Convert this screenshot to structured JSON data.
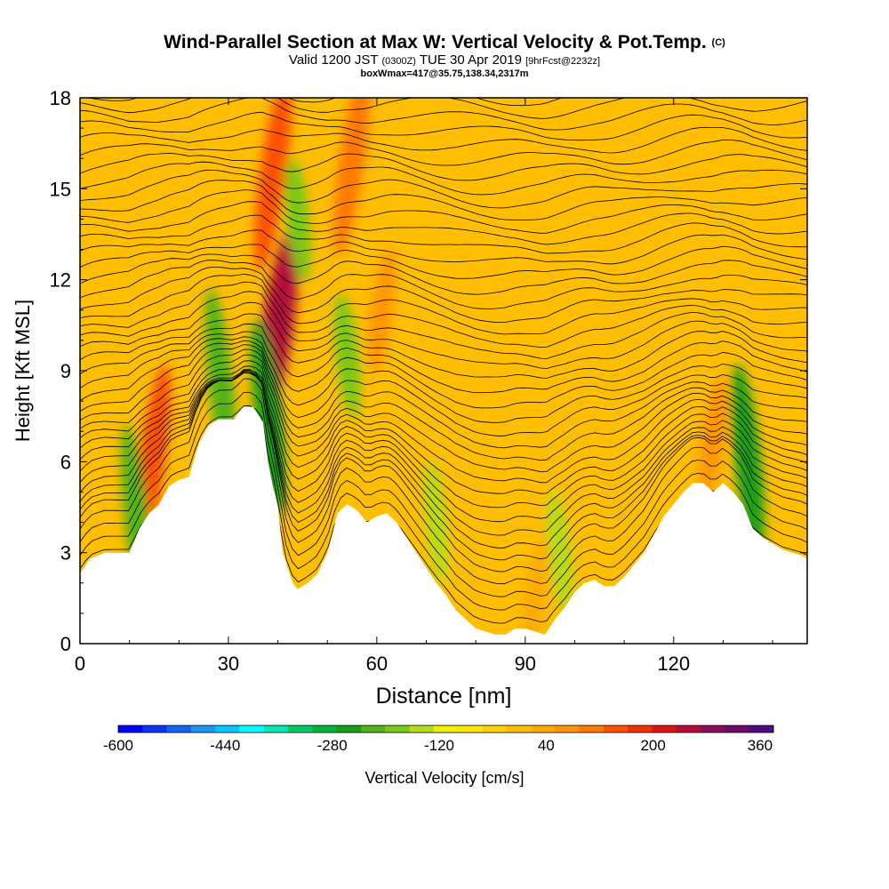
{
  "header": {
    "title": "Wind-Parallel Section at Max W: Vertical Velocity & Pot.Temp.",
    "title_mark": "(C)",
    "valid_prefix": "Valid 1200 JST",
    "valid_utc": "(0300Z)",
    "valid_date": "TUE 30 Apr 2019",
    "forecast": "[9hrFcst@2232z]",
    "box_info": "boxWmax=417@35.75,138.34,2317m"
  },
  "chart_data": {
    "type": "heatmap",
    "xlabel": "Distance [nm]",
    "ylabel": "Height [Kft MSL]",
    "xlim": [
      0,
      147
    ],
    "ylim": [
      0,
      18
    ],
    "x_ticks": [
      0,
      30,
      60,
      90,
      120
    ],
    "y_ticks": [
      0,
      3,
      6,
      9,
      12,
      15,
      18
    ],
    "terrain_kft": [
      [
        0,
        2.3
      ],
      [
        2,
        2.8
      ],
      [
        5,
        3.0
      ],
      [
        10,
        3.0
      ],
      [
        12,
        3.8
      ],
      [
        14,
        4.3
      ],
      [
        16,
        4.6
      ],
      [
        18,
        5.2
      ],
      [
        20,
        5.4
      ],
      [
        22,
        5.5
      ],
      [
        24,
        6.6
      ],
      [
        26,
        7.2
      ],
      [
        28,
        7.4
      ],
      [
        31,
        7.4
      ],
      [
        33,
        7.8
      ],
      [
        35,
        7.8
      ],
      [
        37,
        7.3
      ],
      [
        38,
        6.0
      ],
      [
        39,
        5.2
      ],
      [
        40,
        4.5
      ],
      [
        41,
        3.0
      ],
      [
        42,
        2.5
      ],
      [
        43,
        2.0
      ],
      [
        44,
        1.8
      ],
      [
        46,
        2.0
      ],
      [
        48,
        2.3
      ],
      [
        50,
        3.0
      ],
      [
        51,
        3.6
      ],
      [
        52,
        4.3
      ],
      [
        54,
        4.6
      ],
      [
        56,
        4.4
      ],
      [
        58,
        4.0
      ],
      [
        60,
        4.2
      ],
      [
        62,
        4.3
      ],
      [
        64,
        4.0
      ],
      [
        66,
        3.5
      ],
      [
        68,
        3.0
      ],
      [
        70,
        2.5
      ],
      [
        72,
        2.0
      ],
      [
        74,
        1.6
      ],
      [
        76,
        1.1
      ],
      [
        78,
        0.8
      ],
      [
        80,
        0.5
      ],
      [
        82,
        0.4
      ],
      [
        84,
        0.3
      ],
      [
        86,
        0.3
      ],
      [
        88,
        0.5
      ],
      [
        90,
        0.5
      ],
      [
        92,
        0.4
      ],
      [
        94,
        0.3
      ],
      [
        96,
        0.8
      ],
      [
        98,
        1.2
      ],
      [
        100,
        1.7
      ],
      [
        102,
        2.0
      ],
      [
        104,
        2.1
      ],
      [
        106,
        1.9
      ],
      [
        108,
        1.9
      ],
      [
        110,
        2.2
      ],
      [
        112,
        2.6
      ],
      [
        114,
        3.0
      ],
      [
        116,
        3.6
      ],
      [
        118,
        4.2
      ],
      [
        120,
        4.6
      ],
      [
        122,
        5.0
      ],
      [
        124,
        5.3
      ],
      [
        126,
        5.3
      ],
      [
        128,
        5.0
      ],
      [
        130,
        5.3
      ],
      [
        132,
        5.0
      ],
      [
        134,
        4.6
      ],
      [
        136,
        3.8
      ],
      [
        138,
        3.5
      ],
      [
        140,
        3.3
      ],
      [
        142,
        3.1
      ],
      [
        144,
        3.0
      ],
      [
        146,
        2.9
      ],
      [
        147,
        2.8
      ]
    ],
    "colorbar": {
      "label": "Vertical Velocity [cm/s]",
      "min": -600,
      "max": 380,
      "step": 40,
      "tick_values": [
        -600,
        -440,
        -280,
        -120,
        40,
        200,
        360
      ],
      "tick_labels": [
        "-600",
        "-440",
        "-280",
        "-120",
        "40",
        "200",
        "360"
      ],
      "colors": [
        "#0000ff",
        "#0a32f5",
        "#1464f0",
        "#1e96f0",
        "#00c8ff",
        "#00ffff",
        "#00e6b4",
        "#00c864",
        "#00b43c",
        "#14a014",
        "#50b414",
        "#78c814",
        "#b4dc14",
        "#f0f000",
        "#ffe600",
        "#ffd200",
        "#ffbe00",
        "#ffaa00",
        "#ff9600",
        "#ff7800",
        "#ff5000",
        "#f03000",
        "#dc1414",
        "#b40a3c",
        "#8c0a5a",
        "#6e0a6e",
        "#500a82"
      ]
    },
    "updrafts": [
      {
        "x": 40.0,
        "z": 10.5,
        "w": 330
      },
      {
        "x": 39.0,
        "z": 15.5,
        "w": 220
      },
      {
        "x": 14.5,
        "z": 6.0,
        "w": 230
      },
      {
        "x": 55.0,
        "z": 16.0,
        "w": 190
      },
      {
        "x": 61.0,
        "z": 11.0,
        "w": 130
      },
      {
        "x": 128.0,
        "z": 6.8,
        "w": 150
      },
      {
        "x": 92.0,
        "z": 1.5,
        "w": 80
      },
      {
        "x": 98.0,
        "z": 7.0,
        "w": 60
      },
      {
        "x": 75.0,
        "z": 2.5,
        "w": 70
      }
    ],
    "downdrafts": [
      {
        "x": 11.5,
        "z": 4.0,
        "w": -180
      },
      {
        "x": 38.0,
        "z": 7.5,
        "w": -230
      },
      {
        "x": 28.5,
        "z": 8.5,
        "w": -180
      },
      {
        "x": 44.0,
        "z": 14.0,
        "w": -150
      },
      {
        "x": 54.0,
        "z": 9.5,
        "w": -140
      },
      {
        "x": 135.0,
        "z": 6.0,
        "w": -220
      },
      {
        "x": 97.0,
        "z": 3.0,
        "w": -110
      },
      {
        "x": 72.0,
        "z": 4.0,
        "w": -100
      }
    ],
    "isentropes": {
      "count": 46
    }
  }
}
